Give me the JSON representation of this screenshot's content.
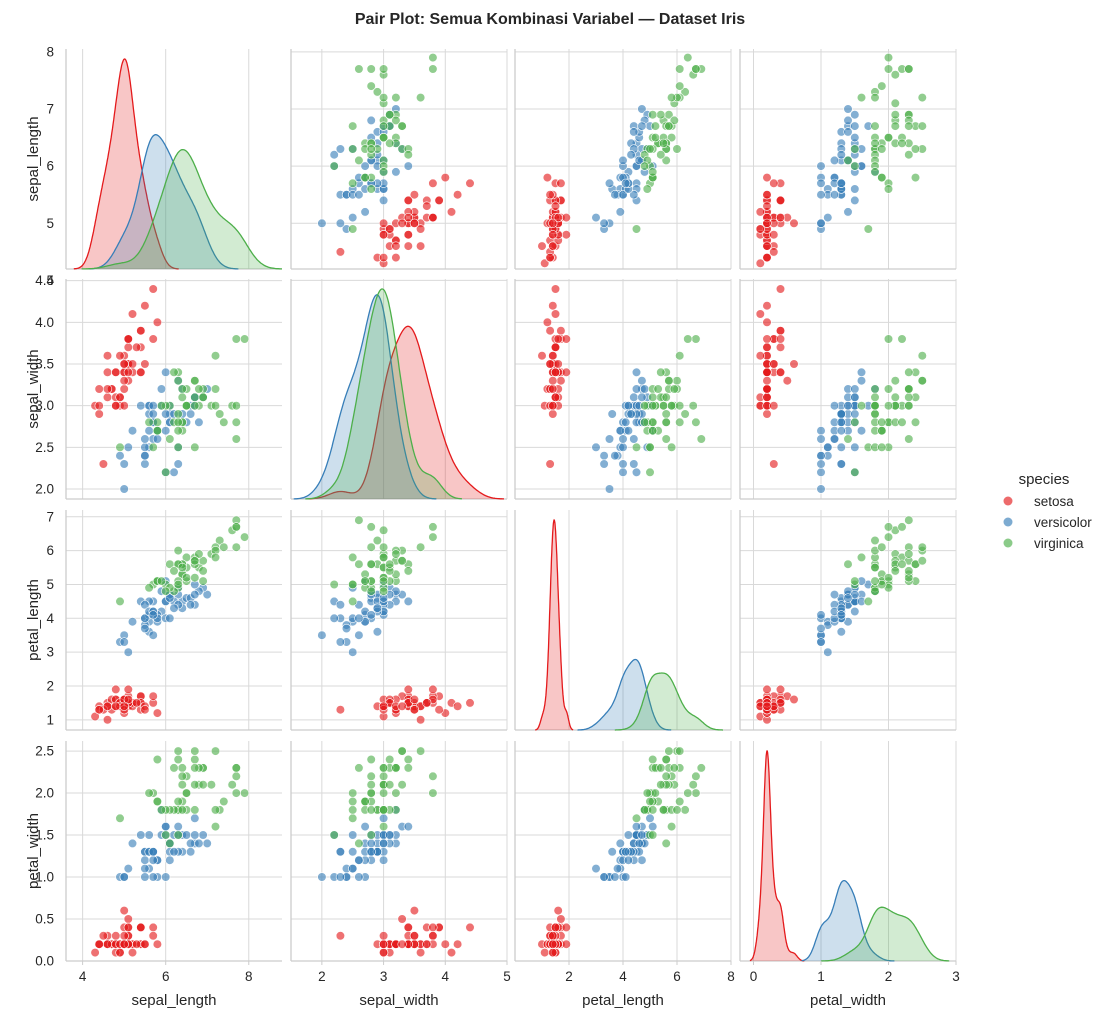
{
  "chart_data": {
    "type": "scatter",
    "title": "Pair Plot: Semua Kombinasi Variabel — Dataset Iris",
    "variables": [
      "sepal_length",
      "sepal_width",
      "petal_length",
      "petal_width"
    ],
    "axis_ranges": {
      "sepal_length": [
        3.6,
        8.8
      ],
      "sepal_width": [
        1.5,
        5.0
      ],
      "petal_length": [
        0.0,
        8.0
      ],
      "petal_width": [
        -0.2,
        3.0
      ]
    },
    "row_ranges": {
      "sepal_length": [
        4.2,
        8.05
      ],
      "sepal_width": [
        1.88,
        4.52
      ],
      "petal_length": [
        0.7,
        7.2
      ],
      "petal_width": [
        0.0,
        2.62
      ]
    },
    "ticks": {
      "sepal_length": [
        "4",
        "5",
        "6",
        "7",
        "8"
      ],
      "sepal_width": [
        "2.0",
        "2.5",
        "3.0",
        "3.5",
        "4.0",
        "4.5"
      ],
      "petal_length": [
        "1",
        "2",
        "3",
        "4",
        "5",
        "6",
        "7"
      ],
      "petal_width": [
        "0.0",
        "0.5",
        "1.0",
        "1.5",
        "2.0",
        "2.5"
      ]
    },
    "xticks": {
      "sepal_length": [
        "4",
        "6",
        "8"
      ],
      "sepal_width": [
        "2",
        "3",
        "4",
        "5"
      ],
      "petal_length": [
        "2",
        "4",
        "6",
        "8"
      ],
      "petal_width": [
        "0",
        "1",
        "2",
        "3"
      ]
    },
    "legend": {
      "title": "species",
      "position": "right",
      "entries": [
        "setosa",
        "versicolor",
        "virginica"
      ]
    },
    "colors": {
      "setosa": "#e41a1c",
      "versicolor": "#377eb8",
      "virginica": "#4daf4a"
    },
    "diagonal": "kde",
    "grid": true,
    "series": [
      {
        "name": "setosa",
        "x": {
          "sepal_length": [
            5.1,
            4.9,
            4.7,
            4.6,
            5.0,
            5.4,
            4.6,
            5.0,
            4.4,
            4.9,
            5.4,
            4.8,
            4.8,
            4.3,
            5.8,
            5.7,
            5.4,
            5.1,
            5.7,
            5.1,
            5.4,
            5.1,
            4.6,
            5.1,
            4.8,
            5.0,
            5.0,
            5.2,
            5.2,
            4.7,
            4.8,
            5.4,
            5.2,
            5.5,
            4.9,
            5.0,
            5.5,
            4.9,
            4.4,
            5.1,
            5.0,
            4.5,
            4.4,
            5.0,
            5.1,
            4.8,
            5.1,
            4.6,
            5.3,
            5.0
          ],
          "sepal_width": [
            3.5,
            3.0,
            3.2,
            3.1,
            3.6,
            3.9,
            3.4,
            3.4,
            2.9,
            3.1,
            3.7,
            3.4,
            3.0,
            3.0,
            4.0,
            4.4,
            3.9,
            3.5,
            3.8,
            3.8,
            3.4,
            3.7,
            3.6,
            3.3,
            3.4,
            3.0,
            3.4,
            3.5,
            3.4,
            3.2,
            3.1,
            3.4,
            4.1,
            4.2,
            3.1,
            3.2,
            3.5,
            3.6,
            3.0,
            3.4,
            3.5,
            2.3,
            3.2,
            3.5,
            3.8,
            3.0,
            3.8,
            3.2,
            3.7,
            3.3
          ],
          "petal_length": [
            1.4,
            1.4,
            1.3,
            1.5,
            1.4,
            1.7,
            1.4,
            1.5,
            1.4,
            1.5,
            1.5,
            1.6,
            1.4,
            1.1,
            1.2,
            1.5,
            1.3,
            1.4,
            1.7,
            1.5,
            1.7,
            1.5,
            1.0,
            1.7,
            1.9,
            1.6,
            1.6,
            1.5,
            1.4,
            1.6,
            1.6,
            1.5,
            1.5,
            1.4,
            1.5,
            1.2,
            1.3,
            1.4,
            1.3,
            1.5,
            1.3,
            1.3,
            1.3,
            1.6,
            1.9,
            1.4,
            1.6,
            1.4,
            1.5,
            1.4
          ],
          "petal_width": [
            0.2,
            0.2,
            0.2,
            0.2,
            0.2,
            0.4,
            0.3,
            0.2,
            0.2,
            0.1,
            0.2,
            0.2,
            0.1,
            0.1,
            0.2,
            0.4,
            0.4,
            0.3,
            0.3,
            0.3,
            0.2,
            0.4,
            0.2,
            0.5,
            0.2,
            0.2,
            0.4,
            0.2,
            0.2,
            0.2,
            0.2,
            0.4,
            0.1,
            0.2,
            0.2,
            0.2,
            0.2,
            0.1,
            0.2,
            0.2,
            0.3,
            0.3,
            0.2,
            0.6,
            0.4,
            0.3,
            0.2,
            0.2,
            0.2,
            0.2
          ]
        }
      },
      {
        "name": "versicolor",
        "x": {
          "sepal_length": [
            7.0,
            6.4,
            6.9,
            5.5,
            6.5,
            5.7,
            6.3,
            4.9,
            6.6,
            5.2,
            5.0,
            5.9,
            6.0,
            6.1,
            5.6,
            6.7,
            5.6,
            5.8,
            6.2,
            5.6,
            5.9,
            6.1,
            6.3,
            6.1,
            6.4,
            6.6,
            6.8,
            6.7,
            6.0,
            5.7,
            5.5,
            5.5,
            5.8,
            6.0,
            5.4,
            6.0,
            6.7,
            6.3,
            5.6,
            5.5,
            5.5,
            6.1,
            5.8,
            5.0,
            5.6,
            5.7,
            5.7,
            6.2,
            5.1,
            5.7
          ],
          "sepal_width": [
            3.2,
            3.2,
            3.1,
            2.3,
            2.8,
            2.8,
            3.3,
            2.4,
            2.9,
            2.7,
            2.0,
            3.0,
            2.2,
            2.9,
            2.9,
            3.1,
            3.0,
            2.7,
            2.2,
            2.5,
            3.2,
            2.8,
            2.5,
            2.8,
            2.9,
            3.0,
            2.8,
            3.0,
            2.9,
            2.6,
            2.4,
            2.4,
            2.7,
            2.7,
            3.0,
            3.4,
            3.1,
            2.3,
            3.0,
            2.5,
            2.6,
            3.0,
            2.6,
            2.3,
            2.7,
            3.0,
            2.9,
            2.9,
            2.5,
            2.8
          ],
          "petal_length": [
            4.7,
            4.5,
            4.9,
            4.0,
            4.6,
            4.5,
            4.7,
            3.3,
            4.6,
            3.9,
            3.5,
            4.2,
            4.0,
            4.7,
            3.6,
            4.4,
            4.5,
            4.1,
            4.5,
            3.9,
            4.8,
            4.0,
            4.9,
            4.7,
            4.3,
            4.4,
            4.8,
            5.0,
            4.5,
            3.5,
            3.8,
            3.7,
            3.9,
            5.1,
            4.5,
            4.5,
            4.7,
            4.4,
            4.1,
            4.0,
            4.4,
            4.6,
            4.0,
            3.3,
            4.2,
            4.2,
            4.2,
            4.3,
            3.0,
            4.1
          ],
          "petal_width": [
            1.4,
            1.5,
            1.5,
            1.3,
            1.5,
            1.3,
            1.6,
            1.0,
            1.3,
            1.4,
            1.0,
            1.5,
            1.0,
            1.4,
            1.3,
            1.4,
            1.5,
            1.0,
            1.5,
            1.1,
            1.8,
            1.3,
            1.5,
            1.2,
            1.3,
            1.4,
            1.4,
            1.7,
            1.5,
            1.0,
            1.1,
            1.0,
            1.2,
            1.6,
            1.5,
            1.6,
            1.5,
            1.3,
            1.3,
            1.3,
            1.2,
            1.4,
            1.2,
            1.0,
            1.3,
            1.2,
            1.3,
            1.3,
            1.1,
            1.3
          ]
        }
      },
      {
        "name": "virginica",
        "x": {
          "sepal_length": [
            6.3,
            5.8,
            7.1,
            6.3,
            6.5,
            7.6,
            4.9,
            7.3,
            6.7,
            7.2,
            6.5,
            6.4,
            6.8,
            5.7,
            5.8,
            6.4,
            6.5,
            7.7,
            7.7,
            6.0,
            6.9,
            5.6,
            7.7,
            6.3,
            6.7,
            7.2,
            6.2,
            6.1,
            6.4,
            7.2,
            7.4,
            7.9,
            6.4,
            6.3,
            6.1,
            7.7,
            6.3,
            6.4,
            6.0,
            6.9,
            6.7,
            6.9,
            5.8,
            6.8,
            6.7,
            6.7,
            6.3,
            6.5,
            6.2,
            5.9
          ],
          "sepal_width": [
            3.3,
            2.7,
            3.0,
            2.9,
            3.0,
            3.0,
            2.5,
            2.9,
            2.5,
            3.6,
            3.2,
            2.7,
            3.0,
            2.5,
            2.8,
            3.2,
            3.0,
            3.8,
            2.6,
            2.2,
            3.2,
            2.8,
            2.8,
            2.7,
            3.3,
            3.2,
            2.8,
            3.0,
            2.8,
            3.0,
            2.8,
            3.8,
            2.8,
            2.8,
            2.6,
            3.0,
            3.4,
            3.1,
            3.0,
            3.1,
            3.1,
            3.1,
            2.7,
            3.2,
            3.3,
            3.0,
            2.5,
            3.0,
            3.4,
            3.0
          ],
          "petal_length": [
            6.0,
            5.1,
            5.9,
            5.6,
            5.8,
            6.6,
            4.5,
            6.3,
            5.8,
            6.1,
            5.1,
            5.3,
            5.5,
            5.0,
            5.1,
            5.3,
            5.5,
            6.7,
            6.9,
            5.0,
            5.7,
            4.9,
            6.7,
            4.9,
            5.7,
            6.0,
            4.8,
            4.9,
            5.6,
            5.8,
            6.1,
            6.4,
            5.6,
            5.1,
            5.6,
            6.1,
            5.6,
            5.5,
            4.8,
            5.4,
            5.6,
            5.1,
            5.1,
            5.9,
            5.7,
            5.2,
            5.0,
            5.2,
            5.4,
            5.1
          ],
          "petal_width": [
            2.5,
            1.9,
            2.1,
            1.8,
            2.2,
            2.1,
            1.7,
            1.8,
            1.8,
            2.5,
            2.0,
            1.9,
            2.1,
            2.0,
            2.4,
            2.3,
            1.8,
            2.2,
            2.3,
            1.5,
            2.3,
            2.0,
            2.0,
            1.8,
            2.1,
            1.8,
            1.8,
            1.8,
            2.1,
            1.6,
            1.9,
            2.0,
            2.2,
            1.5,
            1.4,
            2.3,
            2.4,
            1.8,
            1.8,
            2.1,
            2.4,
            2.3,
            1.9,
            2.3,
            2.5,
            2.3,
            1.9,
            2.0,
            2.3,
            1.8
          ]
        }
      }
    ]
  }
}
